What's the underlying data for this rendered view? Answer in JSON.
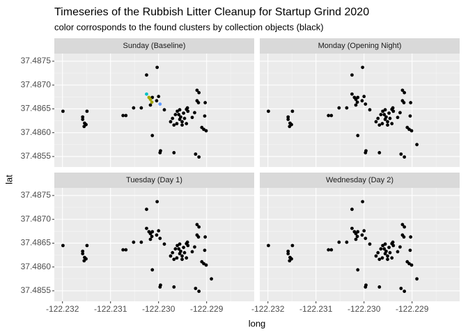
{
  "chart_data": {
    "type": "scatter",
    "title": "Timeseries of the Rubbish Litter Cleanup for Startup Grind 2020",
    "subtitle": "color corrosponds to the found clusters by collection objects (black)",
    "x_label": "long",
    "y_label": "lat",
    "xlim": [
      -122.23217,
      -122.22801
    ],
    "ylim": [
      37.48528,
      37.48766
    ],
    "xticks": [
      -122.232,
      -122.231,
      {
        "value": -122.23,
        "label": "-122.230"
      },
      -122.229
    ],
    "yticks": [
      37.4855,
      {
        "value": 37.486,
        "label": "37.4860"
      },
      37.4865,
      {
        "value": 37.487,
        "label": "37.4870"
      },
      37.4875
    ],
    "grid": true,
    "panels": [
      {
        "title": "Sunday (Baseline)",
        "series": [
          {
            "color": "#000000",
            "x": [
              -122.23199,
              -122.23158,
              -122.23149,
              -122.23158,
              -122.23154,
              -122.23155,
              -122.23151,
              -122.23074,
              -122.23068,
              -122.23052,
              -122.23036,
              -122.23025,
              -122.23003,
              -122.23013,
              -122.23004,
              -122.23,
              -122.23017,
              -122.23013,
              -122.22997,
              -122.22996,
              -122.22968,
              -122.22988,
              -122.22975,
              -122.22971,
              -122.22965,
              -122.22961,
              -122.22958,
              -122.22956,
              -122.22954,
              -122.22951,
              -122.22948,
              -122.22946,
              -122.22942,
              -122.22968,
              -122.22939,
              -122.22942,
              -122.2293,
              -122.22925,
              -122.2292,
              -122.22917,
              -122.2292,
              -122.22916,
              -122.22903,
              -122.22904,
              -122.2291,
              -122.22906,
              -122.22901,
              -122.22923,
              -122.22916,
              -122.2294,
              -122.22956,
              -122.22962,
              -122.22951
            ],
            "y": [
              37.48645,
              37.48633,
              37.48645,
              37.48628,
              37.4862,
              37.48613,
              37.48617,
              37.48636,
              37.48636,
              37.48652,
              37.48652,
              37.48721,
              37.48737,
              37.48674,
              37.48667,
              37.48676,
              37.48658,
              37.48594,
              37.48558,
              37.48562,
              37.48558,
              37.48648,
              37.48623,
              37.4863,
              37.48638,
              37.48645,
              37.48638,
              37.48628,
              37.48633,
              37.48623,
              37.48641,
              37.4863,
              37.48619,
              37.48616,
              37.48645,
              37.48649,
              37.48632,
              37.48642,
              37.48667,
              37.48663,
              37.48689,
              37.48684,
              37.48663,
              37.48635,
              37.48611,
              37.48607,
              37.48604,
              37.48555,
              37.48549,
              37.48652,
              37.48648,
              37.48619,
              37.48616
            ]
          },
          {
            "color": "#00bfc4",
            "x": [
              -122.23025
            ],
            "y": [
              37.48681
            ]
          },
          {
            "color": "#a3a500",
            "x": [
              -122.2302,
              -122.23017,
              -122.23014
            ],
            "y": [
              37.48674,
              37.4867,
              37.48664
            ]
          },
          {
            "color": "#619cff",
            "x": [
              -122.22997
            ],
            "y": [
              37.4866
            ]
          }
        ]
      },
      {
        "title": "Monday (Opening Night)",
        "series": [
          {
            "color": "#000000",
            "x": [
              -122.23199,
              -122.23158,
              -122.23149,
              -122.23158,
              -122.23154,
              -122.23155,
              -122.23151,
              -122.23074,
              -122.23068,
              -122.23052,
              -122.23036,
              -122.23025,
              -122.23003,
              -122.23013,
              -122.23004,
              -122.23,
              -122.23017,
              -122.23013,
              -122.22997,
              -122.22996,
              -122.22968,
              -122.22988,
              -122.22975,
              -122.22971,
              -122.22965,
              -122.22961,
              -122.22958,
              -122.22956,
              -122.22954,
              -122.22951,
              -122.22948,
              -122.22946,
              -122.22942,
              -122.22968,
              -122.22939,
              -122.22942,
              -122.2293,
              -122.22925,
              -122.2292,
              -122.22917,
              -122.2292,
              -122.22916,
              -122.22903,
              -122.22904,
              -122.2291,
              -122.22906,
              -122.22901,
              -122.22923,
              -122.22916,
              -122.2294,
              -122.22956,
              -122.22962,
              -122.22951,
              -122.23025,
              -122.2302,
              -122.23017,
              -122.23014,
              -122.22997,
              -122.2289
            ],
            "y": [
              37.48645,
              37.48633,
              37.48645,
              37.48628,
              37.4862,
              37.48613,
              37.48617,
              37.48636,
              37.48636,
              37.48652,
              37.48652,
              37.48721,
              37.48737,
              37.48674,
              37.48667,
              37.48676,
              37.48658,
              37.48594,
              37.48558,
              37.48562,
              37.48558,
              37.48648,
              37.48623,
              37.4863,
              37.48638,
              37.48645,
              37.48638,
              37.48628,
              37.48633,
              37.48623,
              37.48641,
              37.4863,
              37.48619,
              37.48616,
              37.48645,
              37.48649,
              37.48632,
              37.48642,
              37.48667,
              37.48663,
              37.48689,
              37.48684,
              37.48663,
              37.48635,
              37.48611,
              37.48607,
              37.48604,
              37.48555,
              37.48549,
              37.48652,
              37.48648,
              37.48619,
              37.48616,
              37.48681,
              37.48674,
              37.4867,
              37.48664,
              37.4866,
              37.48575
            ]
          }
        ]
      },
      {
        "title": "Tuesday (Day 1)",
        "series": [
          {
            "color": "#000000",
            "x": [
              -122.23199,
              -122.23158,
              -122.23149,
              -122.23158,
              -122.23154,
              -122.23155,
              -122.23151,
              -122.23074,
              -122.23068,
              -122.23052,
              -122.23036,
              -122.23025,
              -122.23003,
              -122.23013,
              -122.23004,
              -122.23,
              -122.23017,
              -122.23013,
              -122.22997,
              -122.22996,
              -122.22968,
              -122.22988,
              -122.22975,
              -122.22971,
              -122.22965,
              -122.22961,
              -122.22958,
              -122.22956,
              -122.22954,
              -122.22951,
              -122.22948,
              -122.22946,
              -122.22942,
              -122.22968,
              -122.22939,
              -122.22942,
              -122.2293,
              -122.22925,
              -122.2292,
              -122.22917,
              -122.2292,
              -122.22916,
              -122.22903,
              -122.22904,
              -122.2291,
              -122.22906,
              -122.22901,
              -122.22923,
              -122.22916,
              -122.2294,
              -122.22956,
              -122.22962,
              -122.22951,
              -122.23025,
              -122.2302,
              -122.23017,
              -122.23014,
              -122.22997,
              -122.2289
            ],
            "y": [
              37.48645,
              37.48633,
              37.48645,
              37.48628,
              37.4862,
              37.48613,
              37.48617,
              37.48636,
              37.48636,
              37.48652,
              37.48652,
              37.48721,
              37.48737,
              37.48674,
              37.48667,
              37.48676,
              37.48658,
              37.48594,
              37.48558,
              37.48562,
              37.48558,
              37.48648,
              37.48623,
              37.4863,
              37.48638,
              37.48645,
              37.48638,
              37.48628,
              37.48633,
              37.48623,
              37.48641,
              37.4863,
              37.48619,
              37.48616,
              37.48645,
              37.48649,
              37.48632,
              37.48642,
              37.48667,
              37.48663,
              37.48689,
              37.48684,
              37.48663,
              37.48635,
              37.48611,
              37.48607,
              37.48604,
              37.48555,
              37.48549,
              37.48652,
              37.48648,
              37.48619,
              37.48616,
              37.48681,
              37.48674,
              37.4867,
              37.48664,
              37.4866,
              37.48575
            ]
          }
        ]
      },
      {
        "title": "Wednesday (Day 2)",
        "series": [
          {
            "color": "#000000",
            "x": [
              -122.23199,
              -122.23158,
              -122.23149,
              -122.23158,
              -122.23154,
              -122.23155,
              -122.23151,
              -122.23074,
              -122.23068,
              -122.23052,
              -122.23036,
              -122.23025,
              -122.23003,
              -122.23013,
              -122.23004,
              -122.23,
              -122.23017,
              -122.23013,
              -122.22997,
              -122.22996,
              -122.22968,
              -122.22988,
              -122.22975,
              -122.22971,
              -122.22965,
              -122.22961,
              -122.22958,
              -122.22956,
              -122.22954,
              -122.22951,
              -122.22948,
              -122.22946,
              -122.22942,
              -122.22968,
              -122.22939,
              -122.22942,
              -122.2293,
              -122.22925,
              -122.2292,
              -122.22917,
              -122.2292,
              -122.22916,
              -122.22903,
              -122.22904,
              -122.2291,
              -122.22906,
              -122.22901,
              -122.22923,
              -122.22916,
              -122.2294,
              -122.22956,
              -122.22962,
              -122.22951,
              -122.23025,
              -122.2302,
              -122.23017,
              -122.23014,
              -122.22997,
              -122.2289
            ],
            "y": [
              37.48645,
              37.48633,
              37.48645,
              37.48628,
              37.4862,
              37.48613,
              37.48617,
              37.48636,
              37.48636,
              37.48652,
              37.48652,
              37.48721,
              37.48737,
              37.48674,
              37.48667,
              37.48676,
              37.48658,
              37.48594,
              37.48558,
              37.48562,
              37.48558,
              37.48648,
              37.48623,
              37.4863,
              37.48638,
              37.48645,
              37.48638,
              37.48628,
              37.48633,
              37.48623,
              37.48641,
              37.4863,
              37.48619,
              37.48616,
              37.48645,
              37.48649,
              37.48632,
              37.48642,
              37.48667,
              37.48663,
              37.48689,
              37.48684,
              37.48663,
              37.48635,
              37.48611,
              37.48607,
              37.48604,
              37.48555,
              37.48549,
              37.48652,
              37.48648,
              37.48619,
              37.48616,
              37.48681,
              37.48674,
              37.4867,
              37.48664,
              37.4866,
              37.48575
            ]
          }
        ]
      }
    ]
  }
}
